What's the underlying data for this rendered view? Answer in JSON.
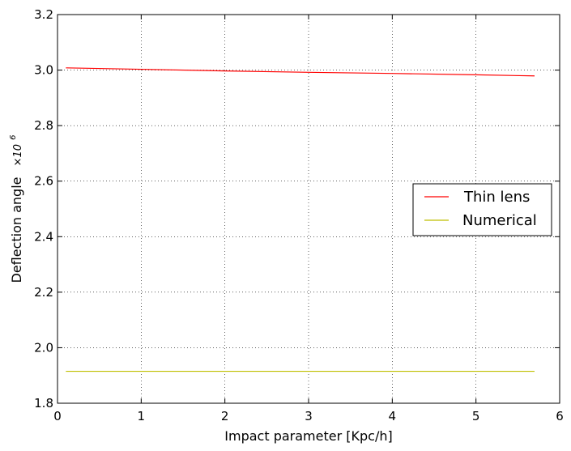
{
  "chart_data": {
    "type": "line",
    "xlabel": "Impact parameter [Kpc/h]",
    "ylabel": "Deflection angle",
    "ylabel_multiplier": "×10",
    "ylabel_exponent": "6",
    "xlim": [
      0,
      6
    ],
    "ylim": [
      1.8,
      3.2
    ],
    "xticks": [
      0,
      1,
      2,
      3,
      4,
      5,
      6
    ],
    "xtick_labels": [
      "0",
      "1",
      "2",
      "3",
      "4",
      "5",
      "6"
    ],
    "yticks": [
      1.8,
      2.0,
      2.2,
      2.4,
      2.6,
      2.8,
      3.0,
      3.2
    ],
    "ytick_labels": [
      "1.8",
      "2.0",
      "2.2",
      "2.4",
      "2.6",
      "2.8",
      "3.0",
      "3.2"
    ],
    "grid": true,
    "legend_position": "center-right",
    "series": [
      {
        "name": "Thin lens",
        "color": "#ff0000",
        "x": [
          0.1,
          1,
          2,
          3,
          4,
          5,
          5.7
        ],
        "y": [
          3.008,
          3.003,
          2.997,
          2.992,
          2.988,
          2.983,
          2.979
        ]
      },
      {
        "name": "Numerical",
        "color": "#bfbf00",
        "x": [
          0.1,
          1,
          2,
          3,
          4,
          5,
          5.7
        ],
        "y": [
          1.915,
          1.915,
          1.915,
          1.915,
          1.915,
          1.915,
          1.915
        ]
      }
    ]
  }
}
